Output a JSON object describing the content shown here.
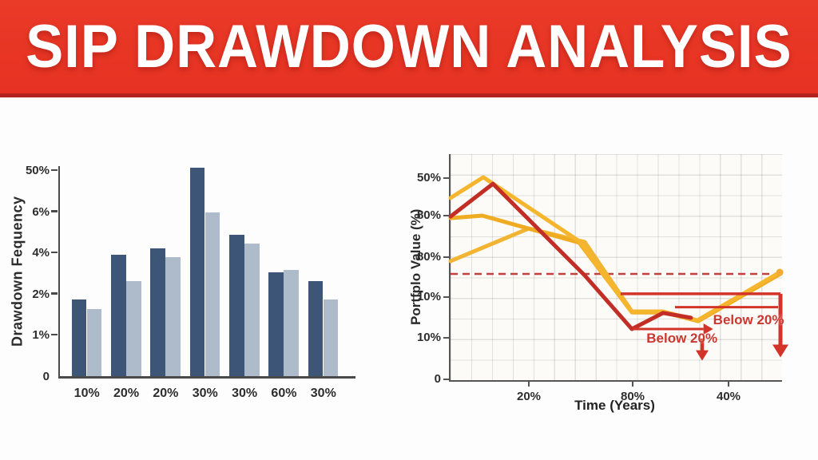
{
  "banner": {
    "title": "SIP DRAWDOWN ANALYSIS",
    "bg_color": "#e83a27",
    "strip_color": "#b0241c",
    "text_color": "#ffffff"
  },
  "chart_data": [
    {
      "type": "bar",
      "title": "",
      "ylabel": "Drawdown Fequency",
      "xlabel": "",
      "y_ticks": [
        "0",
        "1%",
        "2%",
        "4%",
        "6%",
        "50%"
      ],
      "categories": [
        "10%",
        "20%",
        "20%",
        "30%",
        "30%",
        "60%",
        "30%"
      ],
      "value_unit": "y-axis gridline steps (ticks are evenly spaced)",
      "series": [
        {
          "name": "dark-blue-bars",
          "color": "#3d5677",
          "values": [
            1.86,
            2.95,
            3.11,
            5.06,
            3.44,
            2.53,
            2.3
          ]
        },
        {
          "name": "light-blue-bars",
          "color": "#aebbcb",
          "values": [
            1.63,
            2.31,
            2.89,
            3.98,
            3.21,
            2.57,
            1.86
          ]
        }
      ],
      "grid": false,
      "legend": "none"
    },
    {
      "type": "line",
      "title": "",
      "ylabel": "Portfplo Value (%)",
      "xlabel": "Time (Years)",
      "y_ticks": [
        "50%",
        "80%",
        "80%",
        "10%",
        "10%",
        "0"
      ],
      "x_ticks": [
        "20%",
        "80%",
        "40%"
      ],
      "grid": true,
      "legend": "none",
      "coords_note": "points are [x,y] in percent of plot area, y measured from top",
      "series": [
        {
          "name": "yellow-line-lower",
          "color": "#f2b433",
          "points": [
            [
              0,
              47.3
            ],
            [
              23.6,
              32.9
            ],
            [
              40.5,
              38.9
            ],
            [
              54.9,
              70.0
            ],
            [
              64.6,
              70.0
            ],
            [
              74.7,
              73.9
            ],
            [
              99.5,
              52.7
            ]
          ]
        },
        {
          "name": "yellow-line-middle",
          "color": "#efac22",
          "points": [
            [
              0,
              28.3
            ],
            [
              9.6,
              27.2
            ],
            [
              38.8,
              39.2
            ],
            [
              54.7,
              70.0
            ],
            [
              64.3,
              70.0
            ],
            [
              74.7,
              73.9
            ],
            [
              99.5,
              53.0
            ]
          ]
        },
        {
          "name": "yellow-line-upper",
          "color": "#f5b62e",
          "points": [
            [
              0,
              19.4
            ],
            [
              9.9,
              10.2
            ],
            [
              38.8,
              38.5
            ],
            [
              54.5,
              69.6
            ],
            [
              64.1,
              69.6
            ],
            [
              74.5,
              73.5
            ],
            [
              99.3,
              52.3
            ]
          ]
        },
        {
          "name": "red-line",
          "color": "#c22e25",
          "points": [
            [
              0,
              27.6
            ],
            [
              12.8,
              13.1
            ],
            [
              40.5,
              53.7
            ],
            [
              54.7,
              77.4
            ],
            [
              64.1,
              70.3
            ],
            [
              72.5,
              72.4
            ]
          ]
        }
      ],
      "annotations": {
        "color": "#d2342a",
        "dashed_line": {
          "y": 53.0,
          "x1": 0,
          "x2": 100.5,
          "color": "#c4403e"
        },
        "threshold_line_right": {
          "y": 61.8,
          "x1": 51.3,
          "x2": 100,
          "drop_arrow_x": 100,
          "drop_arrow_y2": 85
        },
        "mid_line": {
          "y": 67.7,
          "x1": 67.7,
          "x2": 98.8
        },
        "low_line_arrow": {
          "y": 77.4,
          "x1": 54.9,
          "x2": 76.3
        },
        "small_down_arrow": {
          "x": 75.9,
          "y1": 81.6,
          "y2": 87.5
        },
        "yellow_end_dot": {
          "x": 99.3,
          "y": 52.3,
          "color": "#f3ac33"
        },
        "label_left": {
          "text": "Below 20%"
        },
        "label_right": {
          "text": "Below 20%"
        }
      }
    }
  ]
}
